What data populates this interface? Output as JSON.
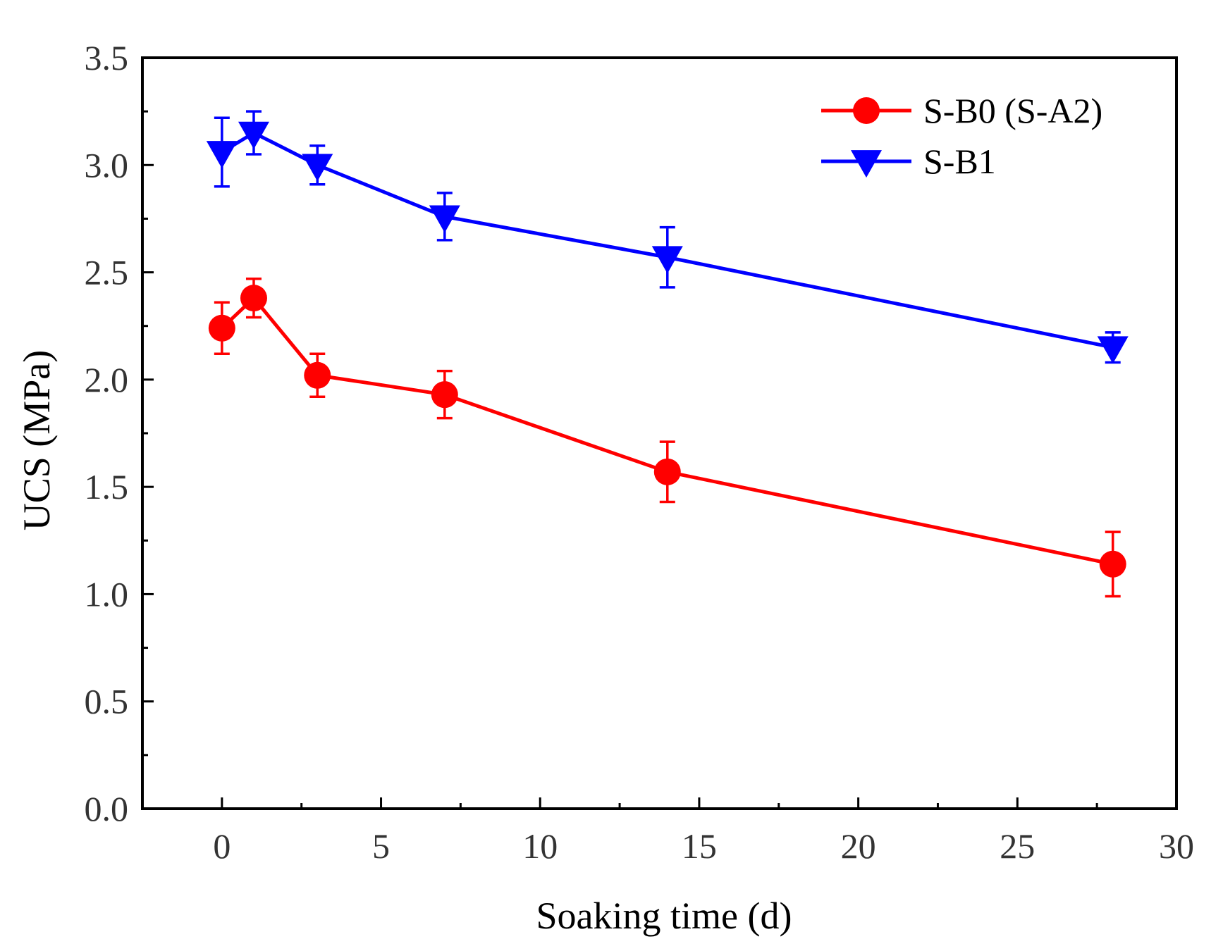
{
  "chart_data": {
    "type": "line",
    "title": "",
    "xlabel": "Soaking time (d)",
    "ylabel": "UCS (MPa)",
    "xlim": [
      -2.5,
      30
    ],
    "ylim": [
      0,
      3.5
    ],
    "x_ticks": [
      0,
      5,
      10,
      15,
      20,
      25,
      30
    ],
    "x_tick_labels": [
      "0",
      "5",
      "10",
      "15",
      "20",
      "25",
      "30"
    ],
    "y_ticks": [
      0,
      0.5,
      1.0,
      1.5,
      2.0,
      2.5,
      3.0,
      3.5
    ],
    "y_tick_labels": [
      "0.0",
      "0.5",
      "1.0",
      "1.5",
      "2.0",
      "2.5",
      "3.0",
      "3.5"
    ],
    "grid": false,
    "legend_position": "top-right",
    "x": [
      0,
      1,
      3,
      7,
      14,
      28
    ],
    "series": [
      {
        "name": "S-B0 (S-A2)",
        "color": "#ff0000",
        "marker": "circle",
        "values": [
          2.24,
          2.38,
          2.02,
          1.93,
          1.57,
          1.14
        ],
        "error": [
          0.12,
          0.09,
          0.1,
          0.11,
          0.14,
          0.15
        ]
      },
      {
        "name": "S-B1",
        "color": "#0000ff",
        "marker": "triangle-down",
        "values": [
          3.06,
          3.15,
          3.0,
          2.76,
          2.57,
          2.15
        ],
        "error": [
          0.16,
          0.1,
          0.09,
          0.11,
          0.14,
          0.07
        ]
      }
    ]
  }
}
